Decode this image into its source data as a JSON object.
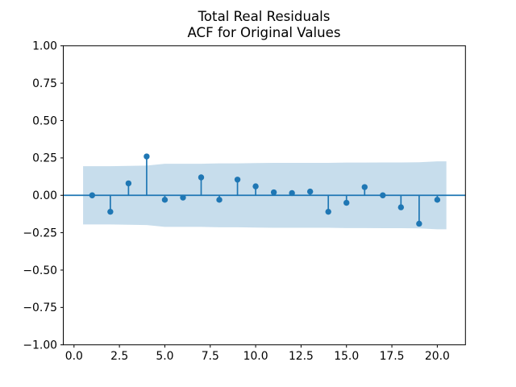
{
  "chart_data": {
    "type": "stem",
    "subtype": "acf-correlogram",
    "title": "Total Real Residuals\nACF for Original Values",
    "title_lines": [
      "Total Real Residuals",
      "ACF for Original Values"
    ],
    "xlabel": "",
    "ylabel": "",
    "x": [
      1,
      2,
      3,
      4,
      5,
      6,
      7,
      8,
      9,
      10,
      11,
      12,
      13,
      14,
      15,
      16,
      17,
      18,
      19,
      20
    ],
    "values": [
      0.0,
      -0.11,
      0.08,
      0.26,
      -0.03,
      -0.015,
      0.12,
      -0.03,
      0.105,
      0.06,
      0.02,
      0.015,
      0.025,
      -0.11,
      -0.05,
      0.055,
      0.0,
      -0.08,
      -0.19,
      -0.03
    ],
    "zero_line_y": 0,
    "confidence_band": {
      "x": [
        0.5,
        1,
        2,
        3,
        4,
        5,
        6,
        7,
        8,
        9,
        10,
        11,
        12,
        13,
        14,
        15,
        16,
        17,
        18,
        19,
        20,
        20.5
      ],
      "upper": [
        0.195,
        0.195,
        0.195,
        0.197,
        0.199,
        0.211,
        0.211,
        0.211,
        0.214,
        0.214,
        0.216,
        0.217,
        0.217,
        0.217,
        0.217,
        0.219,
        0.219,
        0.22,
        0.22,
        0.221,
        0.227,
        0.227
      ],
      "lower": [
        -0.195,
        -0.195,
        -0.195,
        -0.197,
        -0.199,
        -0.211,
        -0.211,
        -0.211,
        -0.214,
        -0.214,
        -0.216,
        -0.217,
        -0.217,
        -0.217,
        -0.217,
        -0.219,
        -0.219,
        -0.22,
        -0.22,
        -0.221,
        -0.227,
        -0.227
      ]
    },
    "xlim": [
      -0.59,
      21.55
    ],
    "ylim": [
      -1.0,
      1.0
    ],
    "x_ticks": {
      "values": [
        0,
        2.5,
        5,
        7.5,
        10,
        12.5,
        15,
        17.5,
        20
      ],
      "labels": [
        "0.0",
        "2.5",
        "5.0",
        "7.5",
        "10.0",
        "12.5",
        "15.0",
        "17.5",
        "20.0"
      ]
    },
    "y_ticks": {
      "values": [
        1,
        0.75,
        0.5,
        0.25,
        0,
        -0.25,
        -0.5,
        -0.75,
        -1
      ],
      "labels": [
        "1.00",
        "0.75",
        "0.50",
        "0.25",
        "0.00",
        "−0.25",
        "−0.50",
        "−0.75",
        "−1.00"
      ]
    },
    "grid": false,
    "legend": "none",
    "colors": {
      "stem": "#1f77b4",
      "marker": "#1f77b4",
      "zero_line": "#1f77b4",
      "band": "#1f77b4",
      "band_opacity": 0.25,
      "axes": "#000000",
      "text": "#000000",
      "background": "#ffffff"
    }
  }
}
